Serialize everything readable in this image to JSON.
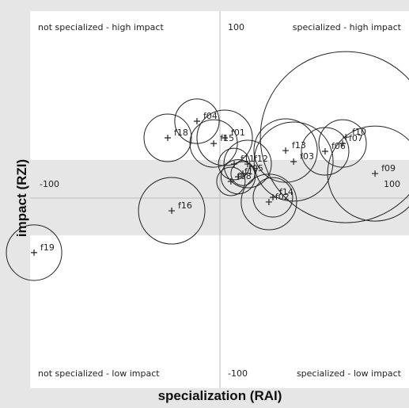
{
  "chart_data": {
    "type": "bubble",
    "x_label": "specialization (RAI)",
    "y_label": "impact (RZI)",
    "quadrant_labels": {
      "top_left": "not specialized - high impact",
      "top_right": "specialized - high impact",
      "bottom_left": "not specialized - low impact",
      "bottom_right": "specialized - low impact"
    },
    "xlim": [
      -100,
      100
    ],
    "ylim": [
      -100,
      100
    ],
    "xticks": [
      -100,
      100
    ],
    "yticks": [
      100,
      -100
    ],
    "color": "#222222",
    "points": [
      {
        "label": "f01",
        "x": 2.5,
        "y": 32.2,
        "size": 14.6
      },
      {
        "label": "f02",
        "x": 25.8,
        "y": -2.1,
        "size": 14.6
      },
      {
        "label": "f03",
        "x": 38.8,
        "y": 19.5,
        "size": 20.8
      },
      {
        "label": "f04",
        "x": -12.1,
        "y": 41.1,
        "size": 11.7
      },
      {
        "label": "f05",
        "x": 12.1,
        "y": 13.1,
        "size": 6.3
      },
      {
        "label": "f06",
        "x": 55.4,
        "y": 25.0,
        "size": 12.5
      },
      {
        "label": "f07",
        "x": 64.6,
        "y": 29.2,
        "size": 12.5
      },
      {
        "label": "f08",
        "x": 5.8,
        "y": 8.9,
        "size": 7.5
      },
      {
        "label": "f09",
        "x": 81.7,
        "y": 13.1,
        "size": 25.0
      },
      {
        "label": "f10",
        "x": 66.3,
        "y": 32.6,
        "size": 45.0
      },
      {
        "label": "f11",
        "x": 7.5,
        "y": 18.2,
        "size": 8.3
      },
      {
        "label": "f12",
        "x": 14.6,
        "y": 18.2,
        "size": 12.5
      },
      {
        "label": "f13",
        "x": 34.6,
        "y": 25.4,
        "size": 16.7
      },
      {
        "label": "f14",
        "x": 27.9,
        "y": 0.4,
        "size": 10.4
      },
      {
        "label": "f15",
        "x": -3.3,
        "y": 29.2,
        "size": 12.5
      },
      {
        "label": "f16",
        "x": -25.4,
        "y": -6.8,
        "size": 17.5
      },
      {
        "label": "f17",
        "x": 9.6,
        "y": 11.4,
        "size": 9.0
      },
      {
        "label": "f18",
        "x": -27.5,
        "y": 32.2,
        "size": 12.5
      },
      {
        "label": "f19",
        "x": -97.9,
        "y": -29.2,
        "size": 14.6
      }
    ]
  }
}
